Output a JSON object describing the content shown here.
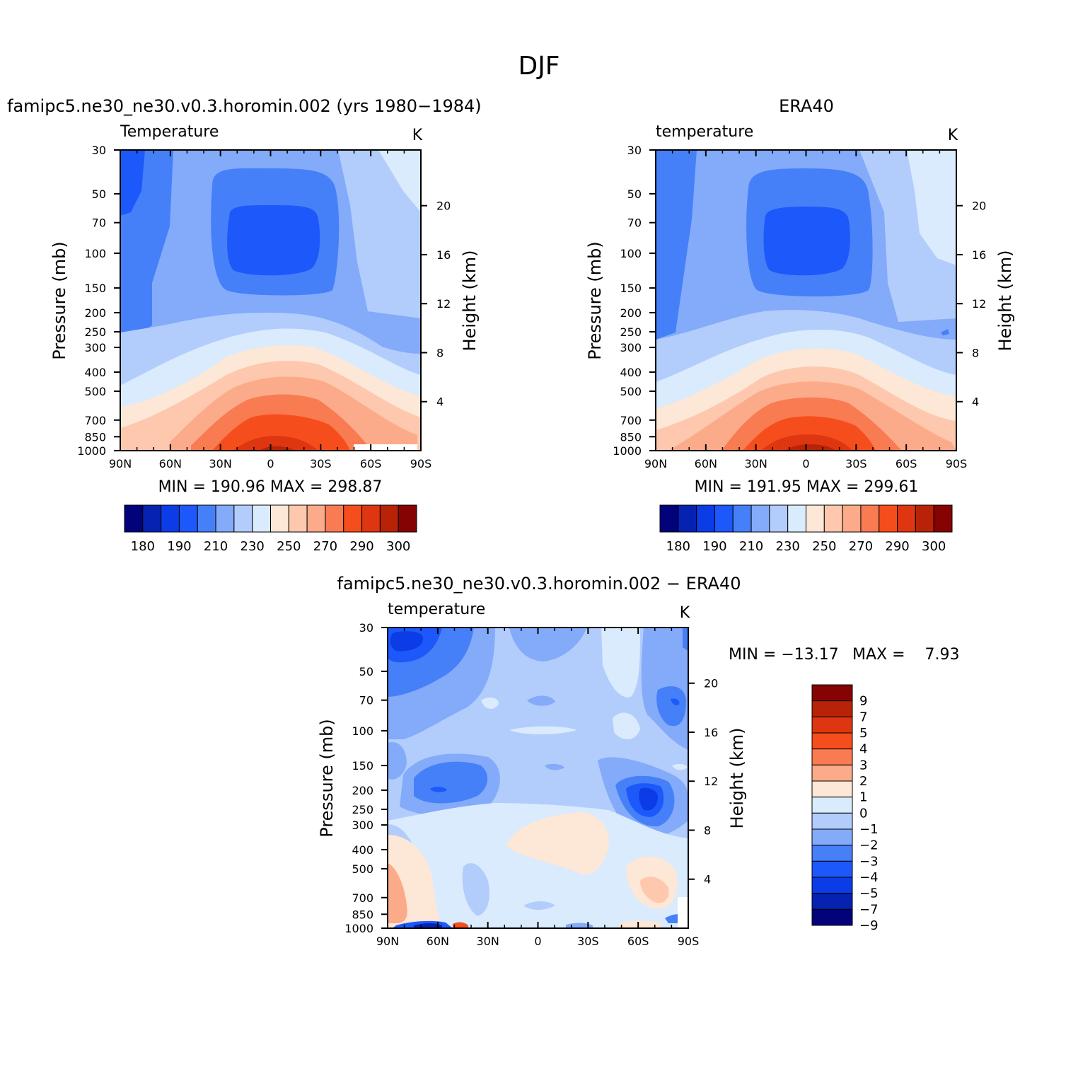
{
  "chart_data": {
    "type": "heatmap",
    "title": "DJF",
    "panels": [
      {
        "id": "model",
        "title": "famipc5.ne30_ne30.v0.3.horomin.002 (yrs 1980−1984)",
        "left_label": "Temperature",
        "right_label": "K",
        "ylabel": "Pressure (mb)",
        "ylabel2": "Height (km)",
        "x_ticks": [
          "90N",
          "60N",
          "30N",
          "0",
          "30S",
          "60S",
          "90S"
        ],
        "x_values": [
          90,
          60,
          30,
          0,
          -30,
          -60,
          -90
        ],
        "y_ticks": [
          "30",
          "50",
          "70",
          "100",
          "150",
          "200",
          "250",
          "300",
          "400",
          "500",
          "700",
          "850",
          "1000"
        ],
        "y_values": [
          30,
          50,
          70,
          100,
          150,
          200,
          250,
          300,
          400,
          500,
          700,
          850,
          1000
        ],
        "height_ticks": [
          "20",
          "16",
          "12",
          "8",
          "4"
        ],
        "height_values": [
          20,
          16,
          12,
          8,
          4
        ],
        "stats": "MIN = 190.96   MAX = 298.87",
        "min": 190.96,
        "max": 298.87,
        "colorbar_labels": [
          "180",
          "190",
          "210",
          "230",
          "250",
          "270",
          "290",
          "300"
        ]
      },
      {
        "id": "obs",
        "title": "ERA40",
        "left_label": "temperature",
        "right_label": "K",
        "ylabel": "Pressure (mb)",
        "ylabel2": "Height (km)",
        "x_ticks": [
          "90N",
          "60N",
          "30N",
          "0",
          "30S",
          "60S",
          "90S"
        ],
        "x_values": [
          90,
          60,
          30,
          0,
          -30,
          -60,
          -90
        ],
        "y_ticks": [
          "30",
          "50",
          "70",
          "100",
          "150",
          "200",
          "250",
          "300",
          "400",
          "500",
          "700",
          "850",
          "1000"
        ],
        "y_values": [
          30,
          50,
          70,
          100,
          150,
          200,
          250,
          300,
          400,
          500,
          700,
          850,
          1000
        ],
        "height_ticks": [
          "20",
          "16",
          "12",
          "8",
          "4"
        ],
        "height_values": [
          20,
          16,
          12,
          8,
          4
        ],
        "stats": "MIN = 191.95   MAX = 299.61",
        "min": 191.95,
        "max": 299.61,
        "colorbar_labels": [
          "180",
          "190",
          "210",
          "230",
          "250",
          "270",
          "290",
          "300"
        ]
      },
      {
        "id": "diff",
        "title": "famipc5.ne30_ne30.v0.3.horomin.002 − ERA40",
        "left_label": "temperature",
        "right_label": "K",
        "ylabel": "Pressure (mb)",
        "ylabel2": "Height (km)",
        "x_ticks": [
          "90N",
          "60N",
          "30N",
          "0",
          "30S",
          "60S",
          "90S"
        ],
        "x_values": [
          90,
          60,
          30,
          0,
          -30,
          -60,
          -90
        ],
        "y_ticks": [
          "30",
          "50",
          "70",
          "100",
          "150",
          "200",
          "250",
          "300",
          "400",
          "500",
          "700",
          "850",
          "1000"
        ],
        "y_values": [
          30,
          50,
          70,
          100,
          150,
          200,
          250,
          300,
          400,
          500,
          700,
          850,
          1000
        ],
        "height_ticks": [
          "20",
          "16",
          "12",
          "8",
          "4"
        ],
        "height_values": [
          20,
          16,
          12,
          8,
          4
        ],
        "stats_min_label": "MIN = −13.17",
        "stats_max_label": "MAX =    7.93",
        "min": -13.17,
        "max": 7.93,
        "colorbar_labels": [
          "9",
          "7",
          "5",
          "4",
          "3",
          "2",
          "1",
          "0",
          "−1",
          "−2",
          "−3",
          "−4",
          "−5",
          "−7",
          "−9"
        ]
      }
    ],
    "temperature_colors": [
      "#02027a",
      "#0523b0",
      "#0b3ce6",
      "#1d58fb",
      "#4680f8",
      "#84aafa",
      "#b2cdfc",
      "#d9ebfd",
      "#fde7d6",
      "#fdc8ad",
      "#fcab8a",
      "#f97b52",
      "#f54e1c",
      "#dd3611",
      "#b82307",
      "#860303"
    ],
    "difference_colors": [
      "#860303",
      "#b82307",
      "#dd3611",
      "#f54e1c",
      "#f97b52",
      "#fcab8a",
      "#fde7d6",
      "#d9ebfd",
      "#b2cdfc",
      "#84aafa",
      "#4680f8",
      "#1d58fb",
      "#0b3ce6",
      "#0523b0",
      "#02027a"
    ]
  }
}
